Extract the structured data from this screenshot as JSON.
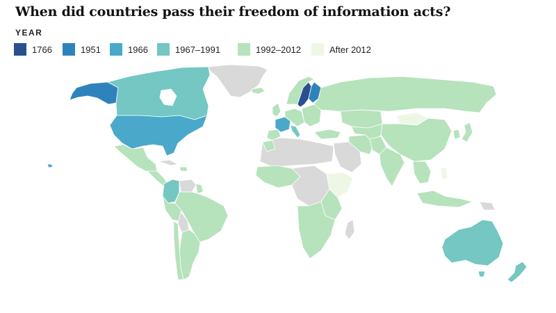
{
  "title": "When did countries pass their freedom of information acts?",
  "legend": {
    "heading": "YEAR",
    "items": [
      {
        "label": "1766",
        "color": "#2a4f8f"
      },
      {
        "label": "1951",
        "color": "#2f83bd"
      },
      {
        "label": "1966",
        "color": "#4aa8cb"
      },
      {
        "label": "1967–1991",
        "color": "#74c7c2"
      },
      {
        "label": "1992–2012",
        "color": "#b6e2bc"
      },
      {
        "label": "After 2012",
        "color": "#eef7e6"
      }
    ]
  },
  "colors": {
    "no_act": "#d9d9d9",
    "border": "#ffffff"
  }
}
